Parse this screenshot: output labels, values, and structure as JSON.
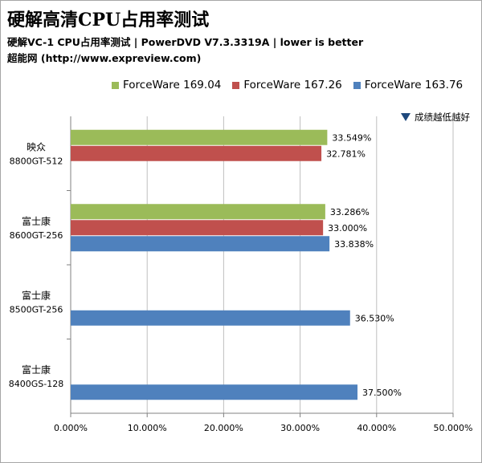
{
  "title": "硬解高清CPU占用率测试",
  "subtitle": "硬解VC-1 CPU占用率测试 | PowerDVD V7.3.3319A | lower is better",
  "source": "超能网 (http://www.expreview.com)",
  "note": "成绩越低越好",
  "colors": {
    "ForceWare 169.04": "#9bbb59",
    "ForceWare 167.26": "#c0504d",
    "ForceWare 163.76": "#4f81bd"
  },
  "chart_data": {
    "type": "bar",
    "orientation": "horizontal",
    "categories": [
      {
        "brand": "映众",
        "model": "8800GT-512"
      },
      {
        "brand": "富士康",
        "model": "8600GT-256"
      },
      {
        "brand": "富士康",
        "model": "8500GT-256"
      },
      {
        "brand": "富士康",
        "model": "8400GS-128"
      }
    ],
    "series": [
      {
        "name": "ForceWare 169.04",
        "values": [
          33.549,
          33.286,
          null,
          null
        ],
        "labels": [
          "33.549%",
          "33.286%",
          "",
          ""
        ]
      },
      {
        "name": "ForceWare 167.26",
        "values": [
          32.781,
          33.0,
          null,
          null
        ],
        "labels": [
          "32.781%",
          "33.000%",
          "",
          ""
        ]
      },
      {
        "name": "ForceWare 163.76",
        "values": [
          null,
          33.838,
          36.53,
          37.5
        ],
        "labels": [
          "",
          "33.838%",
          "36.530%",
          "37.500%"
        ]
      }
    ],
    "xlim": [
      0,
      50
    ],
    "xticks": [
      "0.000%",
      "10.000%",
      "20.000%",
      "30.000%",
      "40.000%",
      "50.000%"
    ],
    "grid": true,
    "legend": "top"
  }
}
